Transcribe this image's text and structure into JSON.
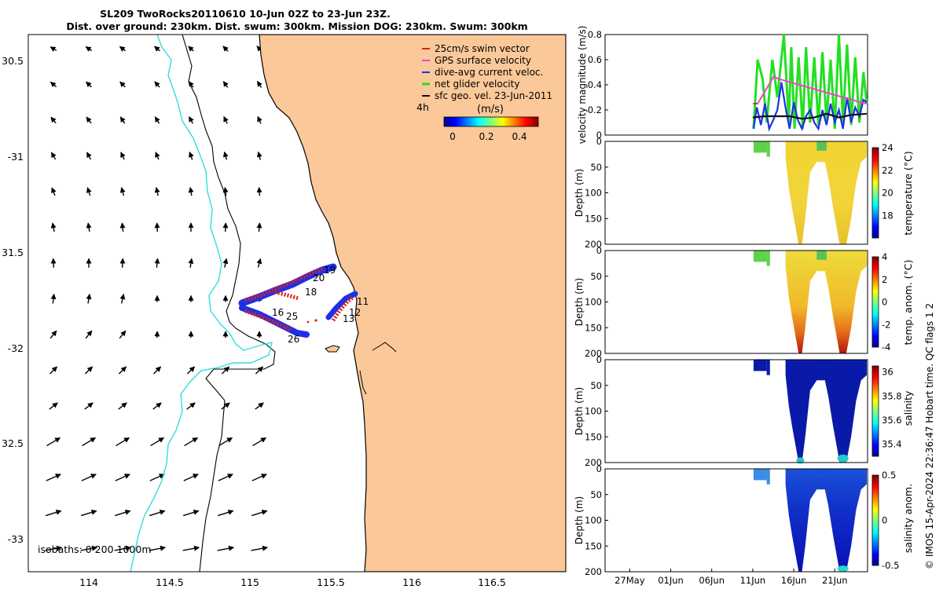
{
  "title": {
    "line1": "SL209 TwoRocks20110610 10-Jun 02Z to 23-Jun 23Z.",
    "line2": "Dist. over ground: 230km. Dist. swum: 300km. Mission DOG: 230km. Swum: 300km"
  },
  "colors": {
    "land": "#fbc899",
    "isobath_shallow": "#000000",
    "isobath_1000": "#33dddd",
    "swim_track": "#e0201a",
    "current_track": "#1f2fe6",
    "net_green": "#22e022",
    "gps_magenta": "#ff3bd8",
    "geo_black": "#111111"
  },
  "map": {
    "lon_ticks": [
      "114",
      "114.5",
      "115",
      "115.5",
      "116",
      "116.5"
    ],
    "lat_ticks": [
      "30.5",
      "-31",
      "31.5",
      "-32",
      "32.5",
      "-33"
    ],
    "isobaths_label": "isobaths: 0   200  1000m",
    "scale_label": "4h",
    "colorbar_title": "(m/s)",
    "colorbar_ticks": [
      "0",
      "0.2",
      "0.4"
    ],
    "day_labels": [
      "19",
      "20",
      "18",
      "11",
      "16",
      "25",
      "12",
      "13",
      "26"
    ],
    "legend": [
      {
        "label": "25cm/s swim vector",
        "color": "#e0201a"
      },
      {
        "label": "GPS surface velocity",
        "color": "#ff3bd8"
      },
      {
        "label": "dive-avg current veloc.",
        "color": "#1f2fe6"
      },
      {
        "label": "net glider velocity",
        "color": "#22e022"
      },
      {
        "label": "sfc geo. vel. 23-Jun-2011",
        "color": "#111111"
      }
    ]
  },
  "chart_data": [
    {
      "type": "line",
      "title": "velocity magnitude",
      "ylabel": "velocity magnitude (m/s)",
      "ylim": [
        0,
        0.8
      ],
      "yticks": [
        "0",
        "0.2",
        "0.4",
        "0.6",
        "0.8"
      ],
      "xlim_days": [
        "24May",
        "25Jun"
      ],
      "series": [
        {
          "name": "net glider velocity",
          "color": "#22e022",
          "x_day": [
            10.1,
            10.6,
            11.2,
            11.7,
            12.4,
            13.0,
            13.8,
            14.4,
            14.7,
            15.1,
            15.6,
            16.1,
            16.5,
            17.0,
            17.5,
            18.0,
            18.5,
            19.0,
            19.5,
            20.0,
            20.5,
            21.0,
            21.5,
            22.0,
            22.5,
            23.0,
            23.5,
            23.9
          ],
          "values": [
            0.05,
            0.6,
            0.45,
            0.1,
            0.6,
            0.3,
            0.8,
            0.1,
            0.7,
            0.05,
            0.62,
            0.05,
            0.7,
            0.1,
            0.62,
            0.08,
            0.66,
            0.1,
            0.6,
            0.05,
            0.8,
            0.1,
            0.72,
            0.08,
            0.62,
            0.1,
            0.5,
            0.25
          ]
        },
        {
          "name": "dive-avg current veloc.",
          "color": "#1f2fe6",
          "x_day": [
            10.1,
            10.5,
            11.0,
            11.5,
            12.0,
            12.5,
            13.0,
            13.5,
            14.0,
            14.5,
            15.0,
            15.5,
            16.0,
            16.5,
            17.0,
            17.5,
            18.0,
            18.5,
            19.0,
            19.5,
            20.0,
            20.5,
            21.0,
            21.5,
            22.0,
            22.5,
            23.0,
            23.5,
            23.9
          ],
          "values": [
            0.05,
            0.22,
            0.08,
            0.25,
            0.05,
            0.12,
            0.2,
            0.42,
            0.22,
            0.05,
            0.26,
            0.12,
            0.05,
            0.15,
            0.2,
            0.1,
            0.05,
            0.2,
            0.08,
            0.25,
            0.1,
            0.2,
            0.05,
            0.3,
            0.1,
            0.22,
            0.15,
            0.28,
            0.26
          ]
        },
        {
          "name": "sfc geo. vel. 23-Jun-2011",
          "color": "#111111",
          "x_day": [
            10.0,
            11.5,
            13.0,
            14.5,
            16.0,
            17.5,
            19.0,
            20.5,
            22.0,
            23.9
          ],
          "values": [
            0.14,
            0.15,
            0.15,
            0.15,
            0.13,
            0.14,
            0.17,
            0.14,
            0.16,
            0.17
          ]
        },
        {
          "name": "GPS surface velocity",
          "color": "#ff3bd8",
          "x_day": [
            10.0,
            10.6,
            12.6,
            13.0,
            23.2,
            23.9
          ],
          "values": [
            0.25,
            0.25,
            0.47,
            0.45,
            0.26,
            0.25
          ]
        },
        {
          "name": "25cm/s swim vector",
          "color": "#e0201a",
          "x_day": [
            10.2,
            10.5
          ],
          "values": [
            0.25,
            0.25
          ]
        }
      ]
    },
    {
      "type": "heatmap",
      "variable": "temperature (°C)",
      "ylabel": "Depth (m)",
      "ylim": [
        200,
        0
      ],
      "yticks": [
        "0",
        "50",
        "100",
        "150",
        "200"
      ],
      "colorbar_range": [
        16,
        24
      ],
      "colorbar_ticks": [
        "24",
        "22",
        "20",
        "18"
      ],
      "typical_value": 21.5
    },
    {
      "type": "heatmap",
      "variable": "temp. anom. (°C)",
      "ylabel": "Depth (m)",
      "ylim": [
        200,
        0
      ],
      "yticks": [
        "0",
        "50",
        "100",
        "150",
        "200"
      ],
      "colorbar_range": [
        -4,
        4
      ],
      "colorbar_ticks": [
        "4",
        "2",
        "0",
        "-2",
        "-4"
      ],
      "typical_value": 2.5
    },
    {
      "type": "heatmap",
      "variable": "salinity",
      "ylabel": "Depth (m)",
      "ylim": [
        200,
        0
      ],
      "yticks": [
        "0",
        "50",
        "100",
        "150",
        "200"
      ],
      "colorbar_range": [
        35.3,
        36.05
      ],
      "colorbar_ticks": [
        "36",
        "35.8",
        "35.6",
        "35.4"
      ],
      "typical_value": 35.3
    },
    {
      "type": "heatmap",
      "variable": "salinity anom.",
      "ylabel": "Depth (m)",
      "ylim": [
        200,
        0
      ],
      "yticks": [
        "0",
        "50",
        "100",
        "150",
        "200"
      ],
      "colorbar_range": [
        -0.5,
        0.5
      ],
      "colorbar_ticks": [
        "0.5",
        "0",
        "-0.5"
      ],
      "typical_value": -0.4
    }
  ],
  "time_axis": {
    "tick_labels": [
      "27May",
      "01Jun",
      "06Jun",
      "11Jun",
      "16Jun",
      "21Jun"
    ]
  },
  "credit": "© IMOS 15-Apr-2024 22:36:47 Hobart time. QC flags 1  2"
}
